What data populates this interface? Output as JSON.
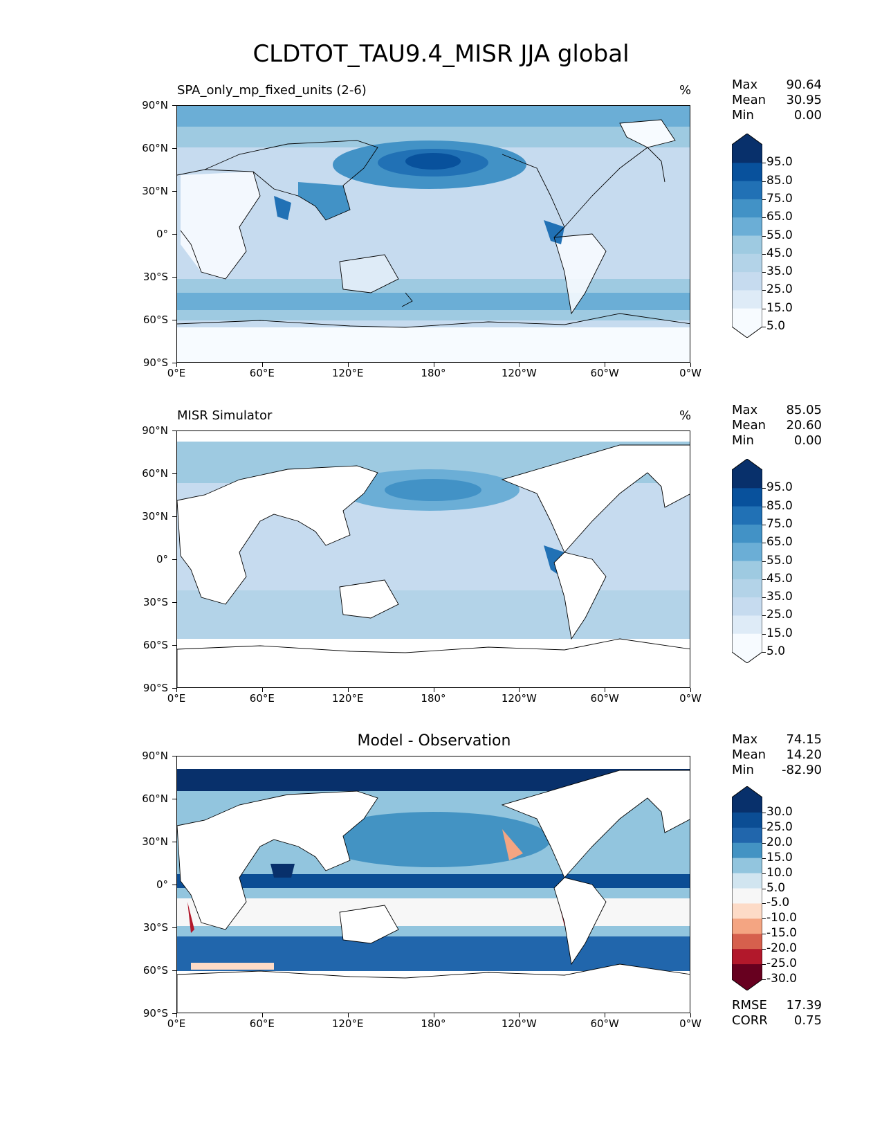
{
  "title": "CLDTOT_TAU9.4_MISR JJA global",
  "axes": {
    "lat_labels": [
      "90°N",
      "60°N",
      "30°N",
      "0°",
      "30°S",
      "60°S",
      "90°S"
    ],
    "lon_labels": [
      "0°E",
      "60°E",
      "120°E",
      "180°",
      "120°W",
      "60°W",
      "0°W"
    ]
  },
  "panels": [
    {
      "title": "SPA_only_mp_fixed_units (2-6)",
      "units": "%",
      "stats": {
        "max_label": "Max",
        "max": "90.64",
        "mean_label": "Mean",
        "mean": "30.95",
        "min_label": "Min",
        "min": "0.00"
      },
      "colorbar": {
        "labels": [
          "95.0",
          "85.0",
          "75.0",
          "65.0",
          "55.0",
          "45.0",
          "35.0",
          "25.0",
          "15.0",
          "5.0"
        ],
        "colors": [
          "#08306b",
          "#08519c",
          "#2171b5",
          "#4292c6",
          "#6baed6",
          "#9ecae1",
          "#b3d3e8",
          "#c6dbef",
          "#deebf7",
          "#f7fbff"
        ]
      }
    },
    {
      "title": "MISR Simulator",
      "units": "%",
      "stats": {
        "max_label": "Max",
        "max": "85.05",
        "mean_label": "Mean",
        "mean": "20.60",
        "min_label": "Min",
        "min": "0.00"
      },
      "colorbar": {
        "labels": [
          "95.0",
          "85.0",
          "75.0",
          "65.0",
          "55.0",
          "45.0",
          "35.0",
          "25.0",
          "15.0",
          "5.0"
        ],
        "colors": [
          "#08306b",
          "#08519c",
          "#2171b5",
          "#4292c6",
          "#6baed6",
          "#9ecae1",
          "#b3d3e8",
          "#c6dbef",
          "#deebf7",
          "#f7fbff"
        ]
      }
    },
    {
      "title": "Model - Observation",
      "units": "",
      "stats": {
        "max_label": "Max",
        "max": "74.15",
        "mean_label": "Mean",
        "mean": "14.20",
        "min_label": "Min",
        "min": "-82.90"
      },
      "colorbar": {
        "labels": [
          "30.0",
          "25.0",
          "20.0",
          "15.0",
          "10.0",
          "5.0",
          "-5.0",
          "-10.0",
          "-15.0",
          "-20.0",
          "-25.0",
          "-30.0"
        ],
        "colors": [
          "#08306b",
          "#0b4d94",
          "#2166ac",
          "#4393c3",
          "#92c5de",
          "#d1e5f0",
          "#f7f7f7",
          "#fddbc7",
          "#f4a582",
          "#d6604d",
          "#b2182b",
          "#67001f"
        ]
      },
      "rmse_label": "RMSE",
      "rmse": "17.39",
      "corr_label": "CORR",
      "corr": "0.75"
    }
  ]
}
